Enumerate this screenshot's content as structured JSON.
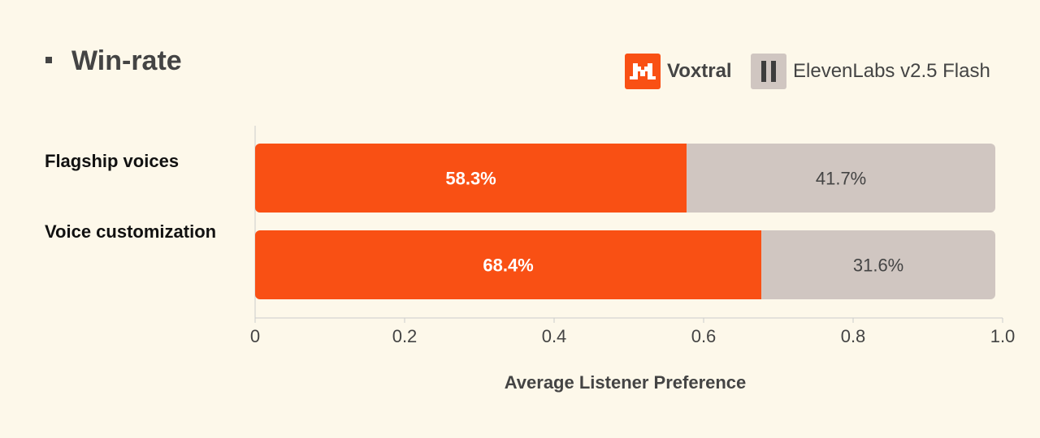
{
  "title": "Win-rate",
  "legend": [
    {
      "name": "Voxtral",
      "color": "#f95014",
      "icon": "voxtral-logo-icon"
    },
    {
      "name": "ElevenLabs v2.5 Flash",
      "color": "#d0c6c1",
      "icon": "elevenlabs-logo-icon"
    }
  ],
  "chart_data": {
    "type": "bar",
    "orientation": "horizontal",
    "stacked": true,
    "categories": [
      "Flagship voices",
      "Voice customization"
    ],
    "series": [
      {
        "name": "Voxtral",
        "values": [
          0.583,
          0.684
        ],
        "labels": [
          "58.3%",
          "68.4%"
        ],
        "color": "#f95014"
      },
      {
        "name": "ElevenLabs v2.5 Flash",
        "values": [
          0.417,
          0.316
        ],
        "labels": [
          "41.7%",
          "31.6%"
        ],
        "color": "#d0c6c1"
      }
    ],
    "xlabel": "Average Listener Preference",
    "xlim": [
      0,
      1.0
    ],
    "xticks": [
      "0",
      "0.2",
      "0.4",
      "0.6",
      "0.8",
      "1.0"
    ],
    "grid": false,
    "legend_position": "top-right"
  }
}
